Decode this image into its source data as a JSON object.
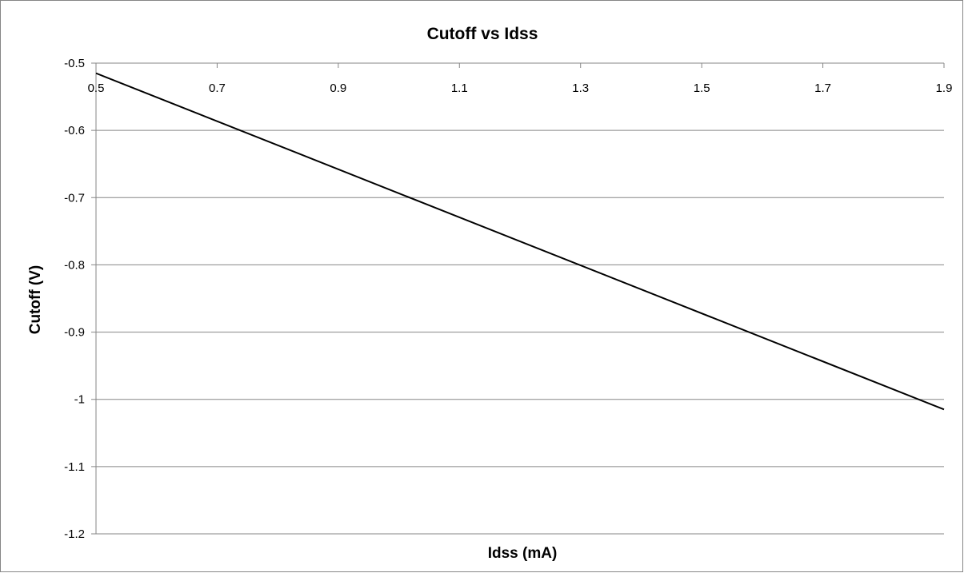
{
  "chart_data": {
    "type": "line",
    "title": "Cutoff vs Idss",
    "xlabel": "Idss (mA)",
    "ylabel": "Cutoff (V)",
    "x_ticks": [
      "0.5",
      "0.7",
      "0.9",
      "1.1",
      "1.3",
      "1.5",
      "1.7",
      "1.9"
    ],
    "y_ticks": [
      "-0.5",
      "-0.6",
      "-0.7",
      "-0.8",
      "-0.9",
      "-1",
      "-1.1",
      "-1.2"
    ],
    "xlim": [
      0.5,
      1.9
    ],
    "ylim": [
      -1.2,
      -0.5
    ],
    "x_axis_position": "top",
    "grid": "horizontal",
    "legend": "none",
    "series": [
      {
        "color": "#000000",
        "x": [
          0.5,
          1.9
        ],
        "y": [
          -0.515,
          -1.015
        ]
      }
    ]
  }
}
